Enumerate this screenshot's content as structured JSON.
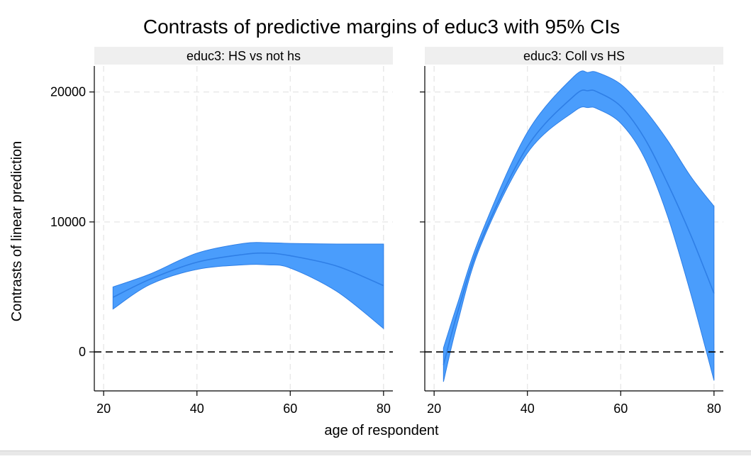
{
  "chart_data": {
    "type": "area",
    "title": "Contrasts of predictive margins of educ3 with 95% CIs",
    "xlabel": "age of respondent",
    "ylabel": "Contrasts of linear prediction",
    "xlim": [
      18,
      82
    ],
    "ylim": [
      -3000,
      22000
    ],
    "xticks": [
      20,
      40,
      60,
      80
    ],
    "yticks": [
      0,
      10000,
      20000
    ],
    "grid": true,
    "reference_line": {
      "y": 0,
      "style": "dashed"
    },
    "colors": {
      "band": "#4a9dfc",
      "line": "#2f7fe6",
      "strip": "#efefef",
      "grid": "#e6e6e6"
    },
    "panels": [
      {
        "label": "educ3: HS vs not hs",
        "x": [
          22,
          30,
          40,
          50,
          55,
          60,
          70,
          80
        ],
        "y": [
          4200,
          5600,
          6900,
          7500,
          7600,
          7400,
          6600,
          5100
        ],
        "lower": [
          3300,
          5200,
          6350,
          6700,
          6700,
          6450,
          4650,
          1800
        ],
        "upper": [
          5000,
          6000,
          7600,
          8350,
          8400,
          8350,
          8300,
          8300
        ]
      },
      {
        "label": "educ3: Coll vs HS",
        "x": [
          22,
          25,
          30,
          40,
          50,
          53,
          55,
          60,
          65,
          70,
          75,
          80
        ],
        "y": [
          -1000,
          3000,
          8500,
          15800,
          19700,
          20100,
          20000,
          18900,
          16500,
          13000,
          9000,
          4500
        ],
        "lower": [
          -2300,
          2200,
          8200,
          15300,
          18500,
          18800,
          18700,
          17600,
          15000,
          10500,
          4500,
          -2200
        ],
        "upper": [
          300,
          3700,
          9000,
          16900,
          21200,
          21500,
          21500,
          20600,
          18700,
          16300,
          13500,
          11200
        ]
      }
    ]
  }
}
